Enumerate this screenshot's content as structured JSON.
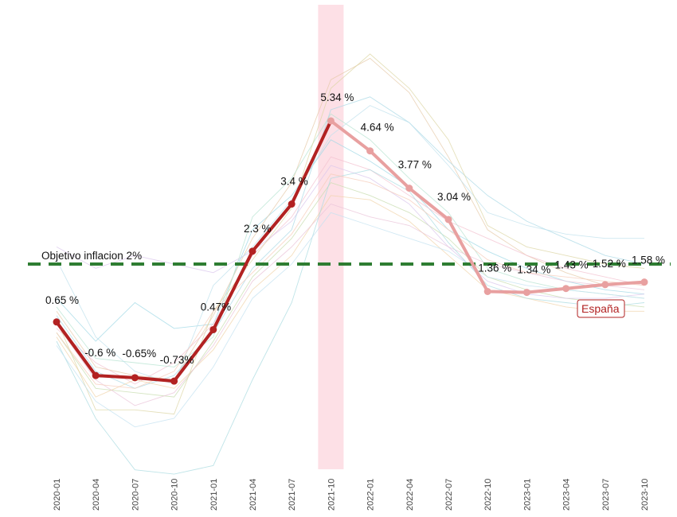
{
  "chart_data": {
    "type": "line",
    "x": [
      "2020-01",
      "2020-04",
      "2020-07",
      "2020-10",
      "2021-01",
      "2021-04",
      "2021-07",
      "2021-10",
      "2022-01",
      "2022-04",
      "2022-07",
      "2022-10",
      "2023-01",
      "2023-04",
      "2023-07",
      "2023-10"
    ],
    "highlight_series": {
      "name": "España",
      "values": [
        0.65,
        -0.6,
        -0.65,
        -0.73,
        0.47,
        2.3,
        3.4,
        5.34,
        4.64,
        3.77,
        3.04,
        1.36,
        1.34,
        1.43,
        1.52,
        1.58
      ],
      "point_labels": [
        "0.65 %",
        "-0.6 %",
        "-0.65%",
        "-0.73%",
        "0.47%",
        "2.3 %",
        "3.4 %",
        "5.34 %",
        "4.64 %",
        "3.77 %",
        "3.04 %",
        "1.36 %",
        "1.34 %",
        "1.43 %",
        "1.52 %",
        "1.58 %"
      ],
      "color_past": "#b22222",
      "color_future": "#e8a0a0"
    },
    "background_series": [
      {
        "color": "#9fd8e6",
        "values": [
          1.2,
          0.2,
          1.1,
          0.5,
          0.6,
          2.8,
          3.6,
          4.9,
          4.4,
          3.8,
          2.8,
          2.3,
          1.9,
          1.6,
          1.4,
          1.3
        ]
      },
      {
        "color": "#e6c9a8",
        "values": [
          0.9,
          -0.4,
          -0.6,
          -0.7,
          0.8,
          2.6,
          3.9,
          6.3,
          6.8,
          6.0,
          4.5,
          2.8,
          2.2,
          1.8,
          1.5,
          1.6
        ]
      },
      {
        "color": "#f3c0cf",
        "values": [
          0.5,
          -0.3,
          -0.8,
          -0.3,
          0.6,
          2.2,
          3.1,
          4.5,
          4.2,
          3.6,
          3.0,
          2.6,
          2.2,
          1.9,
          1.7,
          1.5
        ]
      },
      {
        "color": "#c7dcae",
        "values": [
          0.4,
          -0.9,
          -1.0,
          -1.1,
          0.2,
          1.7,
          2.6,
          3.9,
          3.6,
          3.2,
          2.6,
          1.7,
          1.4,
          1.2,
          1.1,
          1.0
        ]
      },
      {
        "color": "#a8d8e6",
        "values": [
          0.8,
          -0.5,
          -0.9,
          -0.6,
          0.4,
          1.9,
          2.8,
          5.6,
          5.9,
          5.3,
          4.4,
          3.6,
          3.0,
          2.6,
          2.2,
          2.0
        ]
      },
      {
        "color": "#d9c6ec",
        "values": [
          2.4,
          1.9,
          2.2,
          2.0,
          1.8,
          2.3,
          3.0,
          4.3,
          4.0,
          3.4,
          2.4,
          1.6,
          1.3,
          1.2,
          1.2,
          1.3
        ]
      },
      {
        "color": "#f0d3a8",
        "values": [
          0.3,
          -1.1,
          -0.7,
          -0.9,
          0.0,
          1.4,
          2.2,
          3.6,
          3.5,
          3.0,
          2.2,
          1.4,
          1.2,
          1.0,
          0.9,
          0.9
        ]
      },
      {
        "color": "#b5e3d0",
        "values": [
          1.0,
          -0.2,
          -0.3,
          -0.4,
          0.3,
          3.1,
          4.0,
          5.5,
          4.9,
          4.0,
          3.2,
          1.9,
          1.6,
          1.4,
          1.3,
          1.2
        ]
      },
      {
        "color": "#bde0ec",
        "values": [
          2.1,
          0.3,
          -0.5,
          -0.8,
          1.5,
          2.4,
          3.5,
          5.0,
          5.7,
          5.3,
          4.3,
          3.2,
          2.9,
          2.7,
          2.6,
          2.6
        ]
      },
      {
        "color": "#e9c3d8",
        "values": [
          0.6,
          -0.7,
          -1.3,
          -1.0,
          0.1,
          1.6,
          2.4,
          3.4,
          3.1,
          2.9,
          2.4,
          2.0,
          1.8,
          1.6,
          1.5,
          1.4
        ]
      },
      {
        "color": "#aadbe0",
        "values": [
          0.2,
          -1.6,
          -2.8,
          -2.9,
          -2.7,
          -0.7,
          1.1,
          4.0,
          4.2,
          3.7,
          2.5,
          1.5,
          1.2,
          1.1,
          1.0,
          1.1
        ]
      },
      {
        "color": "#dcd6a4",
        "values": [
          0.7,
          -1.4,
          -1.4,
          -1.5,
          0.9,
          2.1,
          3.3,
          6.1,
          6.9,
          6.1,
          4.9,
          2.9,
          2.4,
          2.2,
          2.0,
          1.9
        ]
      },
      {
        "color": "#c3e2f0",
        "values": [
          0.1,
          -1.2,
          -1.8,
          -1.6,
          -0.4,
          1.2,
          2.0,
          3.2,
          2.9,
          2.6,
          2.3,
          1.7,
          1.5,
          1.4,
          1.3,
          1.2
        ]
      },
      {
        "color": "#f5cbb8",
        "values": [
          0.4,
          -0.8,
          -0.9,
          -0.5,
          0.9,
          1.8,
          2.7,
          4.1,
          3.9,
          3.5,
          2.8,
          2.1,
          1.8,
          1.7,
          1.6,
          1.5
        ]
      }
    ],
    "goal_line": {
      "value": 2.0,
      "label": "Objetivo inflacion 2%",
      "color": "#2e7d32"
    },
    "highlight_band": {
      "x": "2021-10",
      "color": "#fde0e6"
    },
    "country_label": "España",
    "ylim": [
      -3.3,
      7.2
    ],
    "grid": false,
    "legend": "none"
  }
}
